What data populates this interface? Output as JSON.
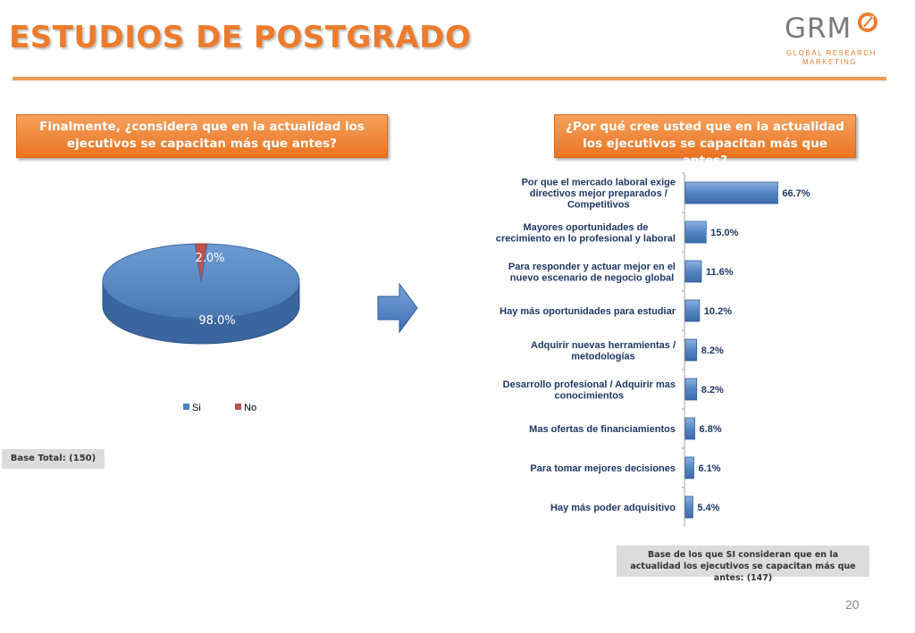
{
  "page": {
    "title": "ESTUDIOS DE POSTGRADO",
    "logo": {
      "main": "GRM",
      "line1": "GLOBAL RESEARCH",
      "line2": "MARKETING"
    },
    "page_number": "20",
    "colors": {
      "accent": "#ec7c2c",
      "bar": "#4f81bd",
      "pie_si": "#4f81bd",
      "pie_no": "#c0504d"
    }
  },
  "left": {
    "question": "Finalmente, ¿considera que en la actualidad los ejecutivos se capacitan más que antes?",
    "base": "Base Total: (150)"
  },
  "right": {
    "question": "¿Por qué cree usted que en la actualidad los ejecutivos se capacitan más que antes?",
    "base": "Base de los que SI consideran que en la actualidad los ejecutivos se capacitan más que antes: (147)"
  },
  "arrow_icon": "right-arrow-icon",
  "chart_data": [
    {
      "type": "pie",
      "style": "3d",
      "categories": [
        "Si",
        "No"
      ],
      "values": [
        98.0,
        2.0
      ],
      "labels": [
        "98.0%",
        "2.0%"
      ],
      "colors": [
        "#4f81bd",
        "#c0504d"
      ],
      "legend": "bottom"
    },
    {
      "type": "bar",
      "orientation": "horizontal",
      "categories": [
        [
          "Por que el mercado laboral exige",
          "directivos mejor preparados /",
          "Competitivos"
        ],
        [
          "Mayores oportunidades de",
          "crecimiento en lo profesional y laboral"
        ],
        [
          "Para responder y actuar mejor en el",
          "nuevo escenario de negocio global"
        ],
        [
          "Hay más oportunidades para estudiar"
        ],
        [
          "Adquirir nuevas herramientas /",
          "metodologías"
        ],
        [
          "Desarrollo profesional / Adquirir mas",
          "conocimientos"
        ],
        [
          "Mas ofertas de financiamientos"
        ],
        [
          "Para tomar mejores decisiones"
        ],
        [
          "Hay más poder adquisitivo"
        ]
      ],
      "values": [
        66.7,
        15.0,
        11.6,
        10.2,
        8.2,
        8.2,
        6.8,
        6.1,
        5.4
      ],
      "value_labels": [
        "66.7%",
        "15.0%",
        "11.6%",
        "10.2%",
        "8.2%",
        "8.2%",
        "6.8%",
        "6.1%",
        "5.4%"
      ],
      "xlim": [
        0,
        100
      ],
      "grid": false
    }
  ]
}
